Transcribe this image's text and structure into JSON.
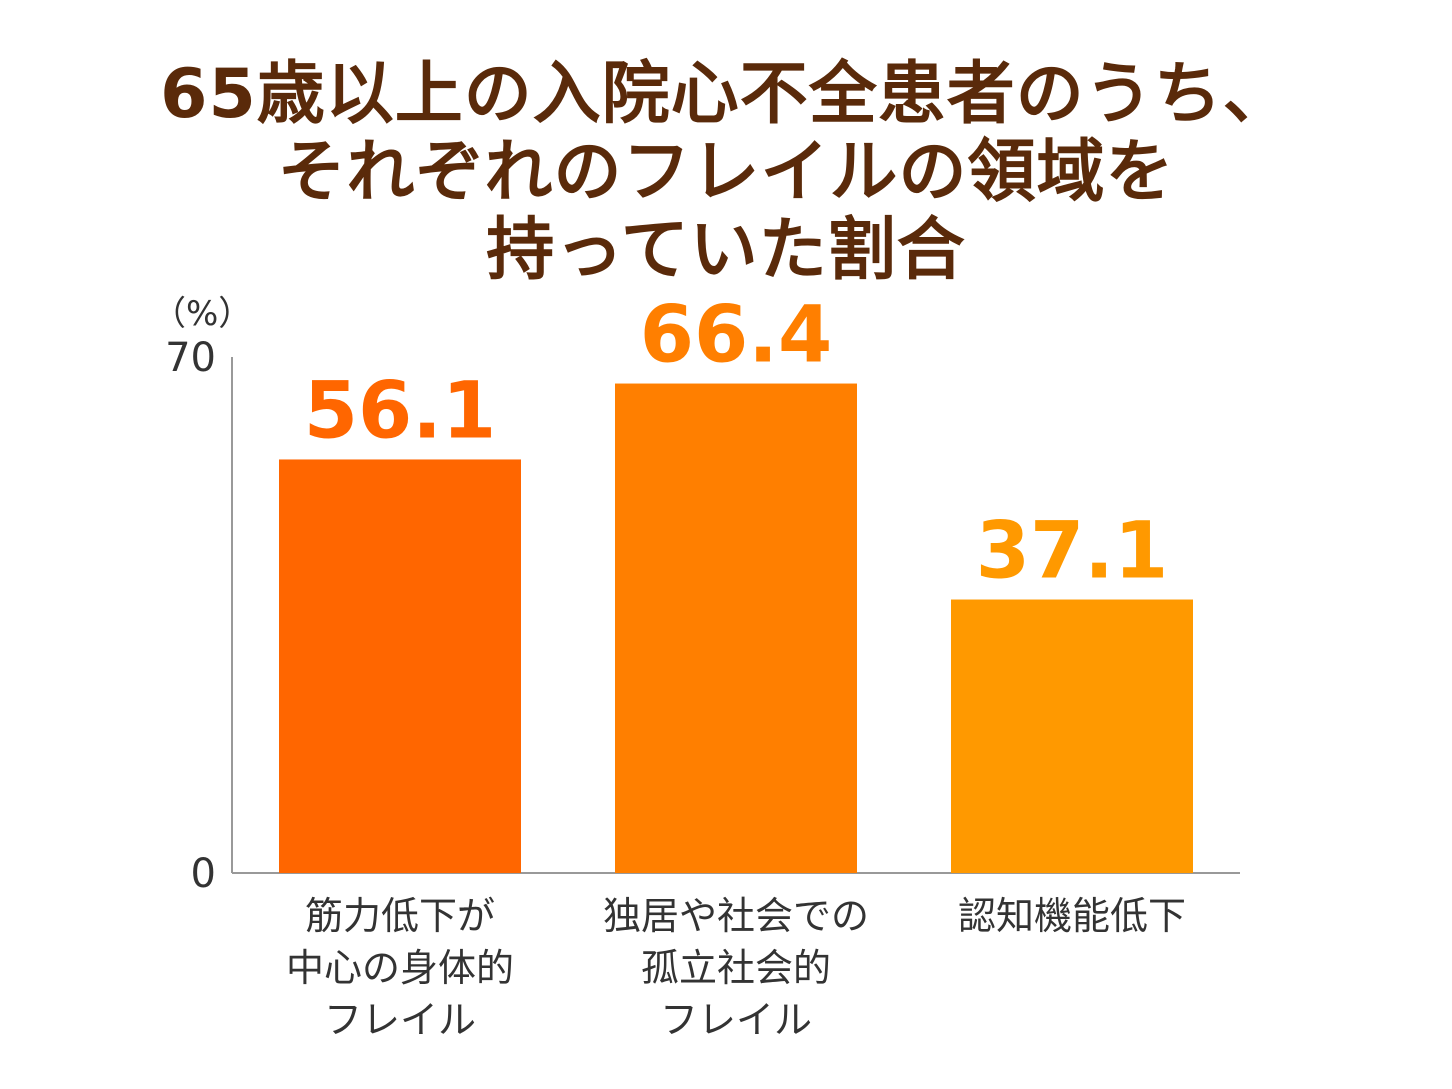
{
  "title_lines": [
    "65歳以上の入院心不全患者のうち、",
    "それぞれのフレイルの領域を",
    "持っていた割合"
  ],
  "unit_label": "（%）",
  "colors": {
    "title": "#5a2a0a",
    "axis": "#999999",
    "bar_colors": [
      "#ff6600",
      "#ff7f00",
      "#ff9900"
    ]
  },
  "chart_data": {
    "type": "bar",
    "categories": [
      [
        "筋力低下が",
        "中心の身体的",
        "フレイル"
      ],
      [
        "独居や社会での",
        "孤立社会的",
        "フレイル"
      ],
      [
        "認知機能低下"
      ]
    ],
    "values": [
      56.1,
      66.4,
      37.1
    ],
    "value_labels": [
      "56.1",
      "66.4",
      "37.1"
    ],
    "yticks": [
      "0",
      "70"
    ],
    "ylim": [
      0,
      70
    ],
    "ylabel": "（%）",
    "grid": false,
    "legend": "none"
  }
}
